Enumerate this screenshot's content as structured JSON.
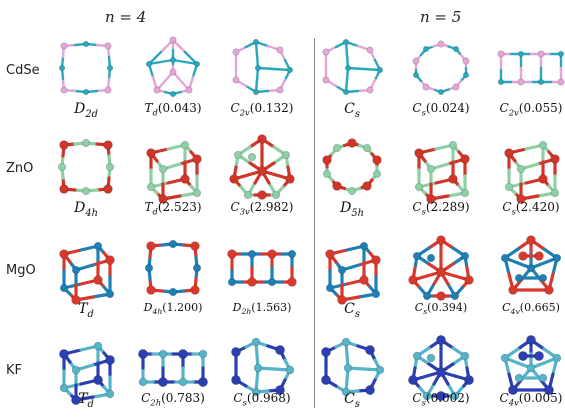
{
  "headers": {
    "left": "n = 4",
    "right": "n = 5"
  },
  "rows": [
    {
      "material": "CdSe",
      "colors": {
        "a": "#e4a6d6",
        "b": "#2aa8ba",
        "bond_a": "#e4a6d6",
        "bond_b": "#2aa8ba"
      },
      "captions": [
        "D2d",
        "Td(0.043)",
        "C2v(0.132)",
        "Cs",
        "Cs(0.024)",
        "C2v(0.055)"
      ]
    },
    {
      "material": "ZnO",
      "colors": {
        "a": "#d0352a",
        "b": "#8ecfa6",
        "bond_a": "#d0352a",
        "bond_b": "#8ecfa6"
      },
      "captions": [
        "D4h",
        "Td(2.523)",
        "C3v(2.982)",
        "D5h",
        "Cs(2.289)",
        "Cs(2.420)"
      ]
    },
    {
      "material": "MgO",
      "colors": {
        "a": "#d8392c",
        "b": "#1f7fb4",
        "bond_a": "#d8392c",
        "bond_b": "#1f7fb4"
      },
      "captions": [
        "Td",
        "D4h(1.200)",
        "D2h(1.563)",
        "Cs",
        "Cs(0.394)",
        "C4v(0.665)"
      ]
    },
    {
      "material": "KF",
      "colors": {
        "a": "#2b3fb0",
        "b": "#56b3c8",
        "bond_a": "#2b3fb0",
        "bond_b": "#56b3c8"
      },
      "captions": [
        "Td",
        "C2h(0.783)",
        "Cs(0.968)",
        "Cs",
        "Cs(0.002)",
        "C4v(0.005)"
      ]
    }
  ]
}
